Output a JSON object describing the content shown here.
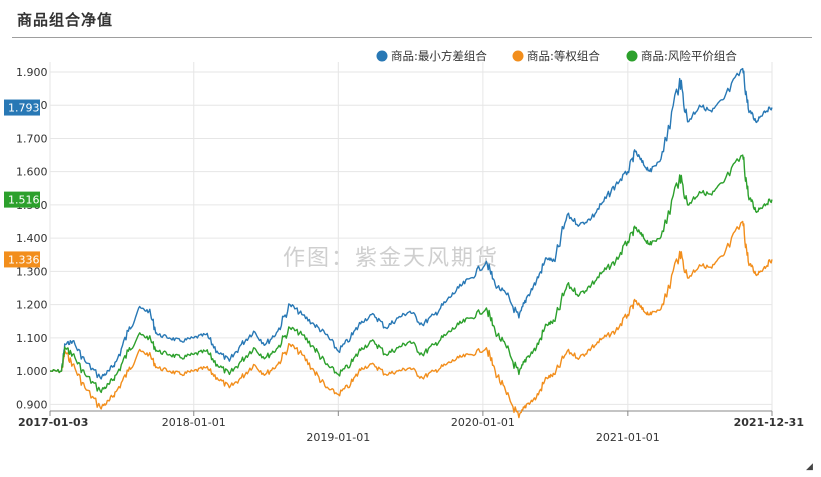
{
  "title": "商品组合净值",
  "chart_data": {
    "type": "line",
    "ylim": [
      0.88,
      1.93
    ],
    "yticks": [
      "1.900",
      "1.800",
      "1.700",
      "1.600",
      "1.500",
      "1.400",
      "1.300",
      "1.200",
      "1.100",
      "1.000",
      "0.900"
    ],
    "ytick_values": [
      1.9,
      1.8,
      1.7,
      1.6,
      1.5,
      1.4,
      1.3,
      1.2,
      1.1,
      1.0,
      0.9
    ],
    "x_start": "2017-01-03",
    "x_end": "2021-12-31",
    "xticks": [
      "2017-01-03",
      "2018-01-01",
      "2019-01-01",
      "2020-01-01",
      "2021-01-01",
      "2021-12-31"
    ],
    "grid": true,
    "legend_position": "top-right",
    "watermark": "作图：紫金天风期货",
    "series": [
      {
        "name": "商品:最小方差组合",
        "color": "#2878b5",
        "last_label": "1.793",
        "points": [
          [
            "2017-01-03",
            1.0
          ],
          [
            "2017-02-01",
            1.0
          ],
          [
            "2017-02-10",
            1.08
          ],
          [
            "2017-03-01",
            1.09
          ],
          [
            "2017-04-01",
            1.03
          ],
          [
            "2017-05-10",
            0.98
          ],
          [
            "2017-06-01",
            1.0
          ],
          [
            "2017-06-20",
            1.03
          ],
          [
            "2017-07-20",
            1.12
          ],
          [
            "2017-08-15",
            1.19
          ],
          [
            "2017-09-10",
            1.18
          ],
          [
            "2017-10-01",
            1.11
          ],
          [
            "2017-11-01",
            1.1
          ],
          [
            "2017-12-01",
            1.09
          ],
          [
            "2018-01-01",
            1.1
          ],
          [
            "2018-02-01",
            1.11
          ],
          [
            "2018-03-01",
            1.06
          ],
          [
            "2018-04-01",
            1.03
          ],
          [
            "2018-05-01",
            1.08
          ],
          [
            "2018-06-01",
            1.12
          ],
          [
            "2018-07-01",
            1.08
          ],
          [
            "2018-08-01",
            1.12
          ],
          [
            "2018-09-01",
            1.2
          ],
          [
            "2018-10-01",
            1.17
          ],
          [
            "2018-11-01",
            1.14
          ],
          [
            "2018-12-01",
            1.11
          ],
          [
            "2019-01-01",
            1.06
          ],
          [
            "2019-02-01",
            1.1
          ],
          [
            "2019-03-01",
            1.15
          ],
          [
            "2019-04-01",
            1.17
          ],
          [
            "2019-05-01",
            1.13
          ],
          [
            "2019-06-01",
            1.16
          ],
          [
            "2019-07-01",
            1.18
          ],
          [
            "2019-08-01",
            1.14
          ],
          [
            "2019-09-01",
            1.17
          ],
          [
            "2019-10-01",
            1.21
          ],
          [
            "2019-11-01",
            1.25
          ],
          [
            "2019-12-01",
            1.28
          ],
          [
            "2020-01-10",
            1.33
          ],
          [
            "2020-02-01",
            1.26
          ],
          [
            "2020-03-01",
            1.23
          ],
          [
            "2020-04-01",
            1.16
          ],
          [
            "2020-04-20",
            1.22
          ],
          [
            "2020-05-15",
            1.27
          ],
          [
            "2020-06-10",
            1.34
          ],
          [
            "2020-07-01",
            1.33
          ],
          [
            "2020-08-01",
            1.47
          ],
          [
            "2020-09-01",
            1.44
          ],
          [
            "2020-10-01",
            1.46
          ],
          [
            "2020-11-01",
            1.51
          ],
          [
            "2020-12-01",
            1.56
          ],
          [
            "2021-01-01",
            1.6
          ],
          [
            "2021-01-20",
            1.66
          ],
          [
            "2021-02-10",
            1.62
          ],
          [
            "2021-03-01",
            1.6
          ],
          [
            "2021-04-01",
            1.66
          ],
          [
            "2021-05-12",
            1.88
          ],
          [
            "2021-06-01",
            1.75
          ],
          [
            "2021-07-01",
            1.8
          ],
          [
            "2021-08-01",
            1.78
          ],
          [
            "2021-09-01",
            1.82
          ],
          [
            "2021-10-18",
            1.91
          ],
          [
            "2021-11-01",
            1.79
          ],
          [
            "2021-11-20",
            1.75
          ],
          [
            "2021-12-10",
            1.78
          ],
          [
            "2021-12-31",
            1.793
          ]
        ]
      },
      {
        "name": "商品:等权组合",
        "color": "#f28e1c",
        "last_label": "1.336",
        "points": [
          [
            "2017-01-03",
            1.0
          ],
          [
            "2017-02-01",
            1.0
          ],
          [
            "2017-02-10",
            1.06
          ],
          [
            "2017-03-01",
            1.02
          ],
          [
            "2017-04-01",
            0.95
          ],
          [
            "2017-05-10",
            0.89
          ],
          [
            "2017-06-01",
            0.91
          ],
          [
            "2017-06-20",
            0.94
          ],
          [
            "2017-07-20",
            1.0
          ],
          [
            "2017-08-15",
            1.06
          ],
          [
            "2017-09-10",
            1.05
          ],
          [
            "2017-10-01",
            1.01
          ],
          [
            "2017-11-01",
            1.0
          ],
          [
            "2017-12-01",
            0.99
          ],
          [
            "2018-01-01",
            1.0
          ],
          [
            "2018-02-01",
            1.01
          ],
          [
            "2018-03-01",
            0.98
          ],
          [
            "2018-04-01",
            0.95
          ],
          [
            "2018-05-01",
            0.98
          ],
          [
            "2018-06-01",
            1.02
          ],
          [
            "2018-07-01",
            0.99
          ],
          [
            "2018-08-01",
            1.02
          ],
          [
            "2018-09-01",
            1.08
          ],
          [
            "2018-10-01",
            1.05
          ],
          [
            "2018-11-01",
            1.0
          ],
          [
            "2018-12-01",
            0.95
          ],
          [
            "2019-01-01",
            0.93
          ],
          [
            "2019-02-01",
            0.96
          ],
          [
            "2019-03-01",
            1.01
          ],
          [
            "2019-04-01",
            1.02
          ],
          [
            "2019-05-01",
            0.99
          ],
          [
            "2019-06-01",
            1.0
          ],
          [
            "2019-07-01",
            1.01
          ],
          [
            "2019-08-01",
            0.98
          ],
          [
            "2019-09-01",
            1.0
          ],
          [
            "2019-10-01",
            1.02
          ],
          [
            "2019-11-01",
            1.04
          ],
          [
            "2019-12-01",
            1.05
          ],
          [
            "2020-01-10",
            1.07
          ],
          [
            "2020-02-01",
            1.0
          ],
          [
            "2020-03-01",
            0.93
          ],
          [
            "2020-04-01",
            0.86
          ],
          [
            "2020-04-20",
            0.9
          ],
          [
            "2020-05-15",
            0.92
          ],
          [
            "2020-06-10",
            0.98
          ],
          [
            "2020-07-01",
            0.99
          ],
          [
            "2020-08-01",
            1.06
          ],
          [
            "2020-09-01",
            1.04
          ],
          [
            "2020-10-01",
            1.07
          ],
          [
            "2020-11-01",
            1.1
          ],
          [
            "2020-12-01",
            1.12
          ],
          [
            "2021-01-01",
            1.17
          ],
          [
            "2021-01-20",
            1.21
          ],
          [
            "2021-02-10",
            1.18
          ],
          [
            "2021-03-01",
            1.17
          ],
          [
            "2021-04-01",
            1.2
          ],
          [
            "2021-05-12",
            1.36
          ],
          [
            "2021-06-01",
            1.28
          ],
          [
            "2021-07-01",
            1.32
          ],
          [
            "2021-08-01",
            1.31
          ],
          [
            "2021-09-01",
            1.35
          ],
          [
            "2021-10-18",
            1.45
          ],
          [
            "2021-11-01",
            1.33
          ],
          [
            "2021-11-20",
            1.29
          ],
          [
            "2021-12-10",
            1.31
          ],
          [
            "2021-12-31",
            1.336
          ]
        ]
      },
      {
        "name": "商品:风险平价组合",
        "color": "#2ca02c",
        "last_label": "1.516",
        "points": [
          [
            "2017-01-03",
            1.0
          ],
          [
            "2017-02-01",
            1.0
          ],
          [
            "2017-02-10",
            1.07
          ],
          [
            "2017-03-01",
            1.05
          ],
          [
            "2017-04-01",
            0.99
          ],
          [
            "2017-05-10",
            0.94
          ],
          [
            "2017-06-01",
            0.96
          ],
          [
            "2017-06-20",
            0.99
          ],
          [
            "2017-07-20",
            1.06
          ],
          [
            "2017-08-15",
            1.11
          ],
          [
            "2017-09-10",
            1.1
          ],
          [
            "2017-10-01",
            1.06
          ],
          [
            "2017-11-01",
            1.05
          ],
          [
            "2017-12-01",
            1.04
          ],
          [
            "2018-01-01",
            1.05
          ],
          [
            "2018-02-01",
            1.06
          ],
          [
            "2018-03-01",
            1.02
          ],
          [
            "2018-04-01",
            0.99
          ],
          [
            "2018-05-01",
            1.03
          ],
          [
            "2018-06-01",
            1.07
          ],
          [
            "2018-07-01",
            1.04
          ],
          [
            "2018-08-01",
            1.07
          ],
          [
            "2018-09-01",
            1.13
          ],
          [
            "2018-10-01",
            1.11
          ],
          [
            "2018-11-01",
            1.07
          ],
          [
            "2018-12-01",
            1.02
          ],
          [
            "2019-01-01",
            0.99
          ],
          [
            "2019-02-01",
            1.02
          ],
          [
            "2019-03-01",
            1.07
          ],
          [
            "2019-04-01",
            1.09
          ],
          [
            "2019-05-01",
            1.05
          ],
          [
            "2019-06-01",
            1.07
          ],
          [
            "2019-07-01",
            1.09
          ],
          [
            "2019-08-01",
            1.05
          ],
          [
            "2019-09-01",
            1.08
          ],
          [
            "2019-10-01",
            1.11
          ],
          [
            "2019-11-01",
            1.14
          ],
          [
            "2019-12-01",
            1.16
          ],
          [
            "2020-01-10",
            1.19
          ],
          [
            "2020-02-01",
            1.12
          ],
          [
            "2020-03-01",
            1.07
          ],
          [
            "2020-04-01",
            0.99
          ],
          [
            "2020-04-20",
            1.04
          ],
          [
            "2020-05-15",
            1.07
          ],
          [
            "2020-06-10",
            1.14
          ],
          [
            "2020-07-01",
            1.15
          ],
          [
            "2020-08-01",
            1.26
          ],
          [
            "2020-09-01",
            1.23
          ],
          [
            "2020-10-01",
            1.26
          ],
          [
            "2020-11-01",
            1.3
          ],
          [
            "2020-12-01",
            1.33
          ],
          [
            "2021-01-01",
            1.39
          ],
          [
            "2021-01-20",
            1.43
          ],
          [
            "2021-02-10",
            1.4
          ],
          [
            "2021-03-01",
            1.38
          ],
          [
            "2021-04-01",
            1.42
          ],
          [
            "2021-05-12",
            1.59
          ],
          [
            "2021-06-01",
            1.5
          ],
          [
            "2021-07-01",
            1.54
          ],
          [
            "2021-08-01",
            1.53
          ],
          [
            "2021-09-01",
            1.57
          ],
          [
            "2021-10-18",
            1.65
          ],
          [
            "2021-11-01",
            1.53
          ],
          [
            "2021-11-20",
            1.48
          ],
          [
            "2021-12-10",
            1.5
          ],
          [
            "2021-12-31",
            1.516
          ]
        ]
      }
    ]
  }
}
